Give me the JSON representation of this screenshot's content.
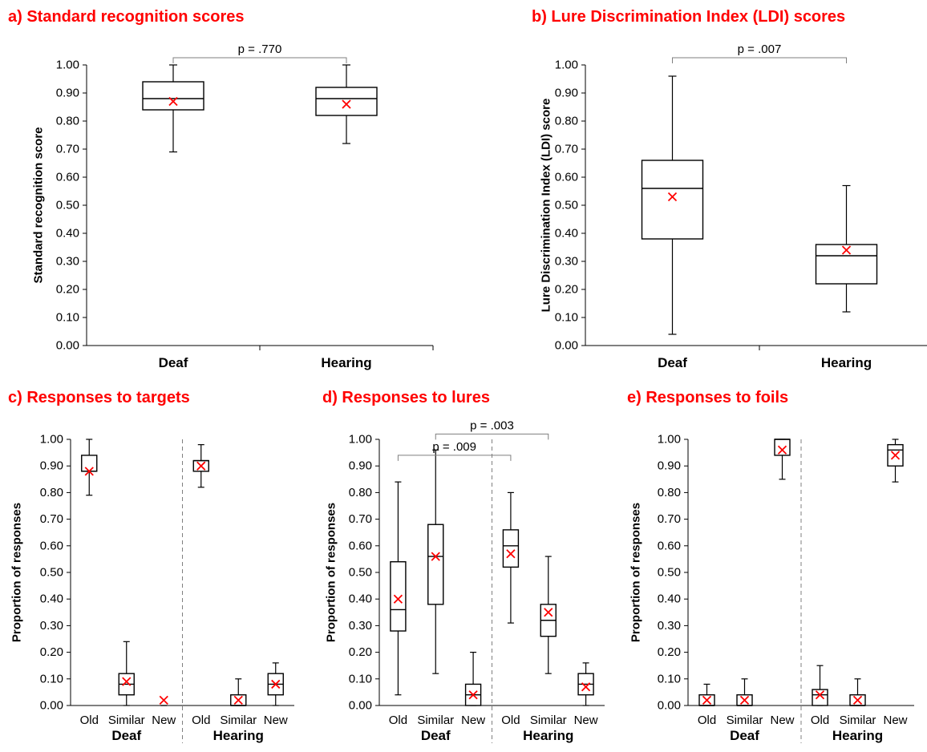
{
  "chart_data": [
    {
      "id": "a",
      "type": "box",
      "title": "a) Standard recognition scores",
      "ylabel": "Standard recognition score",
      "ylim": [
        0,
        1
      ],
      "yticks": [
        "0.00",
        "0.10",
        "0.20",
        "0.30",
        "0.40",
        "0.50",
        "0.60",
        "0.70",
        "0.80",
        "0.90",
        "1.00"
      ],
      "groups": [
        "Deaf",
        "Hearing"
      ],
      "categories": [
        "Deaf",
        "Hearing"
      ],
      "boxes": [
        {
          "min": 0.69,
          "q1": 0.84,
          "median": 0.88,
          "q3": 0.94,
          "max": 1.0,
          "mean": 0.87
        },
        {
          "min": 0.72,
          "q1": 0.82,
          "median": 0.88,
          "q3": 0.92,
          "max": 1.0,
          "mean": 0.86
        }
      ],
      "comparisons": [
        {
          "from": 0,
          "to": 1,
          "label": "p = .770"
        }
      ]
    },
    {
      "id": "b",
      "type": "box",
      "title": "b) Lure Discrimination Index (LDI) scores",
      "ylabel": "Lure Discrimination Index (LDI) score",
      "ylim": [
        0,
        1
      ],
      "yticks": [
        "0.00",
        "0.10",
        "0.20",
        "0.30",
        "0.40",
        "0.50",
        "0.60",
        "0.70",
        "0.80",
        "0.90",
        "1.00"
      ],
      "groups": [
        "Deaf",
        "Hearing"
      ],
      "categories": [
        "Deaf",
        "Hearing"
      ],
      "boxes": [
        {
          "min": 0.04,
          "q1": 0.38,
          "median": 0.56,
          "q3": 0.66,
          "max": 0.96,
          "mean": 0.53
        },
        {
          "min": 0.12,
          "q1": 0.22,
          "median": 0.32,
          "q3": 0.36,
          "max": 0.57,
          "mean": 0.34
        }
      ],
      "comparisons": [
        {
          "from": 0,
          "to": 1,
          "label": "p = .007"
        }
      ]
    },
    {
      "id": "c",
      "type": "box",
      "title": "c) Responses to targets",
      "ylabel": "Proportion of responses",
      "ylim": [
        0,
        1
      ],
      "yticks": [
        "0.00",
        "0.10",
        "0.20",
        "0.30",
        "0.40",
        "0.50",
        "0.60",
        "0.70",
        "0.80",
        "0.90",
        "1.00"
      ],
      "groups": [
        "Deaf",
        "Hearing"
      ],
      "categories": [
        "Old",
        "Similar",
        "New",
        "Old",
        "Similar",
        "New"
      ],
      "boxes": [
        {
          "min": 0.79,
          "q1": 0.88,
          "median": 0.88,
          "q3": 0.94,
          "max": 1.0,
          "mean": 0.88
        },
        {
          "min": 0.0,
          "q1": 0.04,
          "median": 0.08,
          "q3": 0.12,
          "max": 0.24,
          "mean": 0.09
        },
        {
          "min": 0.0,
          "q1": 0.0,
          "median": 0.0,
          "q3": 0.0,
          "max": 0.0,
          "mean": 0.02
        },
        {
          "min": 0.82,
          "q1": 0.88,
          "median": 0.92,
          "q3": 0.92,
          "max": 0.98,
          "mean": 0.9
        },
        {
          "min": 0.0,
          "q1": 0.0,
          "median": 0.0,
          "q3": 0.04,
          "max": 0.1,
          "mean": 0.02
        },
        {
          "min": 0.0,
          "q1": 0.04,
          "median": 0.08,
          "q3": 0.12,
          "max": 0.16,
          "mean": 0.08
        }
      ],
      "comparisons": []
    },
    {
      "id": "d",
      "type": "box",
      "title": "d) Responses to lures",
      "ylabel": "Proportion of responses",
      "ylim": [
        0,
        1
      ],
      "yticks": [
        "0.00",
        "0.10",
        "0.20",
        "0.30",
        "0.40",
        "0.50",
        "0.60",
        "0.70",
        "0.80",
        "0.90",
        "1.00"
      ],
      "groups": [
        "Deaf",
        "Hearing"
      ],
      "categories": [
        "Old",
        "Similar",
        "New",
        "Old",
        "Similar",
        "New"
      ],
      "boxes": [
        {
          "min": 0.04,
          "q1": 0.28,
          "median": 0.36,
          "q3": 0.54,
          "max": 0.84,
          "mean": 0.4
        },
        {
          "min": 0.12,
          "q1": 0.38,
          "median": 0.56,
          "q3": 0.68,
          "max": 0.96,
          "mean": 0.56
        },
        {
          "min": 0.0,
          "q1": 0.0,
          "median": 0.04,
          "q3": 0.08,
          "max": 0.2,
          "mean": 0.04
        },
        {
          "min": 0.31,
          "q1": 0.52,
          "median": 0.6,
          "q3": 0.66,
          "max": 0.8,
          "mean": 0.57
        },
        {
          "min": 0.12,
          "q1": 0.26,
          "median": 0.32,
          "q3": 0.38,
          "max": 0.56,
          "mean": 0.35
        },
        {
          "min": 0.0,
          "q1": 0.04,
          "median": 0.08,
          "q3": 0.12,
          "max": 0.16,
          "mean": 0.07
        }
      ],
      "comparisons": [
        {
          "from": 0,
          "to": 3,
          "label": "p = .009",
          "y": 0.94
        },
        {
          "from": 1,
          "to": 4,
          "label": "p = .003",
          "y": 1.02
        }
      ]
    },
    {
      "id": "e",
      "type": "box",
      "title": "e) Responses to foils",
      "ylabel": "Proportion of responses",
      "ylim": [
        0,
        1
      ],
      "yticks": [
        "0.00",
        "0.10",
        "0.20",
        "0.30",
        "0.40",
        "0.50",
        "0.60",
        "0.70",
        "0.80",
        "0.90",
        "1.00"
      ],
      "groups": [
        "Deaf",
        "Hearing"
      ],
      "categories": [
        "Old",
        "Similar",
        "New",
        "Old",
        "Similar",
        "New"
      ],
      "boxes": [
        {
          "min": 0.0,
          "q1": 0.0,
          "median": 0.0,
          "q3": 0.04,
          "max": 0.08,
          "mean": 0.02
        },
        {
          "min": 0.0,
          "q1": 0.0,
          "median": 0.0,
          "q3": 0.04,
          "max": 0.1,
          "mean": 0.02
        },
        {
          "min": 0.85,
          "q1": 0.94,
          "median": 1.0,
          "q3": 1.0,
          "max": 1.0,
          "mean": 0.96
        },
        {
          "min": 0.0,
          "q1": 0.0,
          "median": 0.04,
          "q3": 0.06,
          "max": 0.15,
          "mean": 0.04
        },
        {
          "min": 0.0,
          "q1": 0.0,
          "median": 0.0,
          "q3": 0.04,
          "max": 0.1,
          "mean": 0.02
        },
        {
          "min": 0.84,
          "q1": 0.9,
          "median": 0.96,
          "q3": 0.98,
          "max": 1.0,
          "mean": 0.94
        }
      ],
      "comparisons": []
    }
  ]
}
